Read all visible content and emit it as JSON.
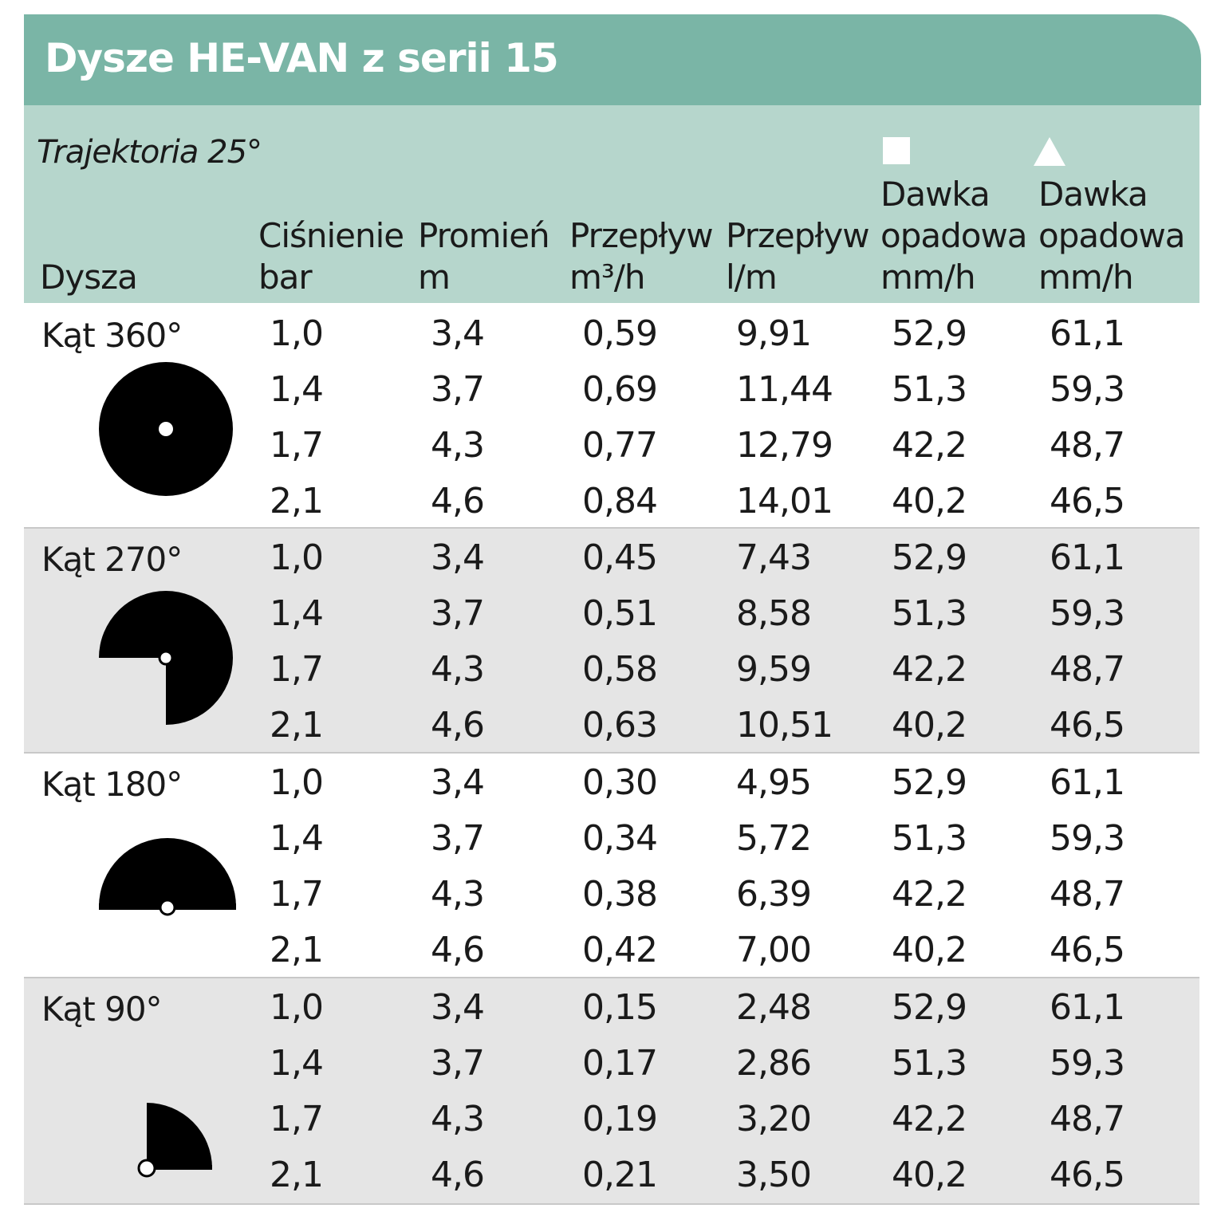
{
  "title": "Dysze HE-VAN z serii 15",
  "trajectory": "Trajektoria 25°",
  "columns": {
    "nozzle": "Dysza",
    "pressure": [
      "Ciśnienie",
      "bar"
    ],
    "radius": [
      "Promień",
      "m"
    ],
    "flow_m3h": [
      "Przepływ",
      "m³/h"
    ],
    "flow_lm": [
      "Przepływ",
      "l/m"
    ],
    "precip_square": [
      "Dawka",
      "opadowa",
      "mm/h"
    ],
    "precip_triangle": [
      "Dawka",
      "opadowa",
      "mm/h"
    ]
  },
  "groups": [
    {
      "label": "Kąt 360°",
      "icon": "full-circle-icon",
      "shaded": false,
      "rows": [
        [
          "1,0",
          "3,4",
          "0,59",
          "9,91",
          "52,9",
          "61,1"
        ],
        [
          "1,4",
          "3,7",
          "0,69",
          "11,44",
          "51,3",
          "59,3"
        ],
        [
          "1,7",
          "4,3",
          "0,77",
          "12,79",
          "42,2",
          "48,7"
        ],
        [
          "2,1",
          "4,6",
          "0,84",
          "14,01",
          "40,2",
          "46,5"
        ]
      ]
    },
    {
      "label": "Kąt 270°",
      "icon": "three-quarter-circle-icon",
      "shaded": true,
      "rows": [
        [
          "1,0",
          "3,4",
          "0,45",
          "7,43",
          "52,9",
          "61,1"
        ],
        [
          "1,4",
          "3,7",
          "0,51",
          "8,58",
          "51,3",
          "59,3"
        ],
        [
          "1,7",
          "4,3",
          "0,58",
          "9,59",
          "42,2",
          "48,7"
        ],
        [
          "2,1",
          "4,6",
          "0,63",
          "10,51",
          "40,2",
          "46,5"
        ]
      ]
    },
    {
      "label": "Kąt 180°",
      "icon": "half-circle-icon",
      "shaded": false,
      "rows": [
        [
          "1,0",
          "3,4",
          "0,30",
          "4,95",
          "52,9",
          "61,1"
        ],
        [
          "1,4",
          "3,7",
          "0,34",
          "5,72",
          "51,3",
          "59,3"
        ],
        [
          "1,7",
          "4,3",
          "0,38",
          "6,39",
          "42,2",
          "48,7"
        ],
        [
          "2,1",
          "4,6",
          "0,42",
          "7,00",
          "40,2",
          "46,5"
        ]
      ]
    },
    {
      "label": "Kąt 90°",
      "icon": "quarter-circle-icon",
      "shaded": true,
      "rows": [
        [
          "1,0",
          "3,4",
          "0,15",
          "2,48",
          "52,9",
          "61,1"
        ],
        [
          "1,4",
          "3,7",
          "0,17",
          "2,86",
          "51,3",
          "59,3"
        ],
        [
          "1,7",
          "4,3",
          "0,19",
          "3,20",
          "42,2",
          "48,7"
        ],
        [
          "2,1",
          "4,6",
          "0,21",
          "3,50",
          "40,2",
          "46,5"
        ]
      ]
    }
  ]
}
